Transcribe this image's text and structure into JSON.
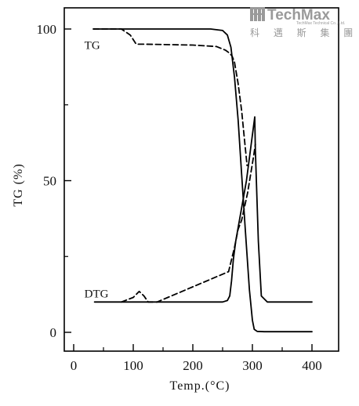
{
  "watermark": {
    "name": "TechMax",
    "tagline": "TechMax Technical Co., Ltd.",
    "chinese": "科 邁 斯 集 團",
    "accent_color": "#9a9a9a"
  },
  "chart_data": {
    "type": "line",
    "title": "",
    "xlabel": "Temp.(°C)",
    "ylabel": "TG (%)",
    "xlim": [
      0,
      440
    ],
    "ylim": [
      -6,
      106
    ],
    "x_ticks": [
      0,
      100,
      200,
      300,
      400
    ],
    "x_minor_ticks": [
      50,
      150,
      250,
      350
    ],
    "y_ticks": [
      0,
      50,
      100
    ],
    "y_minor_ticks": [
      25,
      75
    ],
    "grid": false,
    "legend": "none",
    "annotations": [
      {
        "text": "TG",
        "x": 18,
        "y": 95
      },
      {
        "text": "DTG",
        "x": 18,
        "y": 13
      }
    ],
    "series": [
      {
        "style": "solid",
        "color": "#000000",
        "x": [
          33,
          100,
          200,
          230,
          250,
          258,
          264,
          270,
          276,
          282,
          288,
          295,
          300,
          303,
          308,
          320,
          360,
          400
        ],
        "y": [
          100,
          100,
          100,
          100,
          99.5,
          98,
          94,
          84,
          70,
          52,
          34,
          14,
          4,
          1,
          0.3,
          0.2,
          0.2,
          0.2
        ]
      },
      {
        "style": "dashed",
        "color": "#000000",
        "x": [
          33,
          80,
          95,
          105,
          120,
          200,
          240,
          255,
          262,
          266,
          270,
          276,
          282,
          287,
          291
        ],
        "y": [
          100,
          100,
          98,
          95,
          95,
          94.7,
          94.2,
          93,
          92,
          91,
          89,
          82,
          73,
          63,
          55
        ]
      },
      {
        "style": "solid",
        "color": "#000000",
        "x": [
          35,
          100,
          200,
          250,
          258,
          262,
          265,
          268,
          272,
          290,
          304,
          305,
          310,
          315,
          325,
          400
        ],
        "y": [
          10,
          10,
          10,
          10,
          10.5,
          12,
          17,
          24,
          30,
          50,
          71,
          60,
          30,
          12,
          10,
          10
        ]
      },
      {
        "style": "dashed",
        "color": "#000000",
        "x": [
          80,
          100,
          110,
          118,
          125,
          140,
          260,
          270,
          276,
          282,
          292,
          302,
          305
        ],
        "y": [
          10,
          11.5,
          13.5,
          12,
          10,
          10,
          20,
          28,
          34,
          37,
          46,
          58,
          62
        ]
      }
    ]
  }
}
